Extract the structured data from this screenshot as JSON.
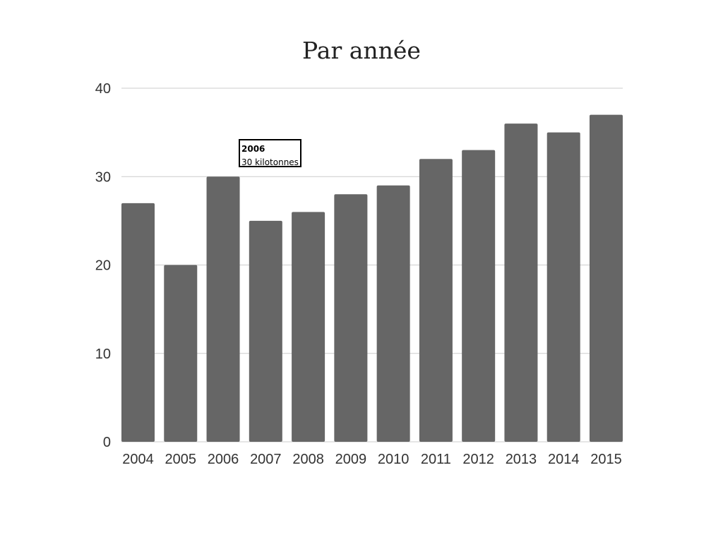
{
  "chart_data": {
    "type": "bar",
    "title": "Par année",
    "xlabel": "",
    "ylabel": "",
    "categories": [
      "2004",
      "2005",
      "2006",
      "2007",
      "2008",
      "2009",
      "2010",
      "2011",
      "2012",
      "2013",
      "2014",
      "2015"
    ],
    "values": [
      27,
      20,
      30,
      25,
      26,
      28,
      29,
      32,
      33,
      36,
      35,
      37
    ],
    "ylim": [
      0,
      40
    ],
    "yticks": [
      0,
      10,
      20,
      30,
      40
    ],
    "grid": true,
    "legend": "none",
    "bar_color": "#666666",
    "grid_color": "#cccccc"
  },
  "tooltip": {
    "title": "2006",
    "value": "30 kilotonnes"
  }
}
